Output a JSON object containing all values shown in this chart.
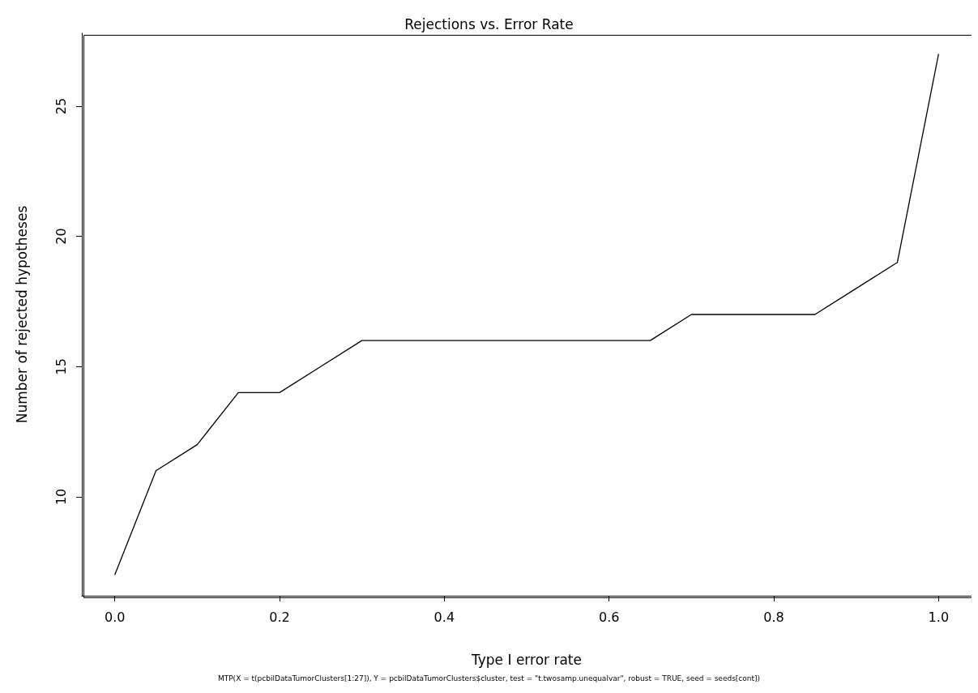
{
  "chart_data": {
    "type": "line",
    "title": "Rejections vs. Error Rate",
    "xlabel": "Type I error rate",
    "ylabel": "Number of rejected hypotheses",
    "annotations": [
      "MTP(X = t(pcbilDataTumorClusters[1:27]), Y = pcbilDataTumorClusters$cluster, test = \"t.twosamp.unequalvar\", robust = TRUE, seed = seeds[cont])"
    ],
    "x": [
      0,
      0.05,
      0.1,
      0.15,
      0.2,
      0.25,
      0.3,
      0.35,
      0.4,
      0.45,
      0.5,
      0.55,
      0.6,
      0.65,
      0.7,
      0.75,
      0.8,
      0.85,
      0.9,
      0.95,
      1.0
    ],
    "series": [
      {
        "color": "#000000",
        "values": [
          7,
          11,
          12,
          14,
          14,
          15,
          16,
          16,
          16,
          16,
          16,
          16,
          16,
          16,
          17,
          17,
          17,
          17,
          18,
          19,
          27
        ]
      }
    ],
    "xlim": [
      -0.04,
      1.04
    ],
    "xticks": [
      {
        "value": 0,
        "label": "0.0"
      },
      0.2,
      0.4,
      0.6,
      0.8,
      {
        "value": 1,
        "label": "1.0"
      }
    ],
    "ylim": [
      6.2,
      27.8
    ],
    "yticks": [
      10,
      15,
      20,
      25
    ],
    "grid": false,
    "marker": "none",
    "line_style": "solid"
  }
}
